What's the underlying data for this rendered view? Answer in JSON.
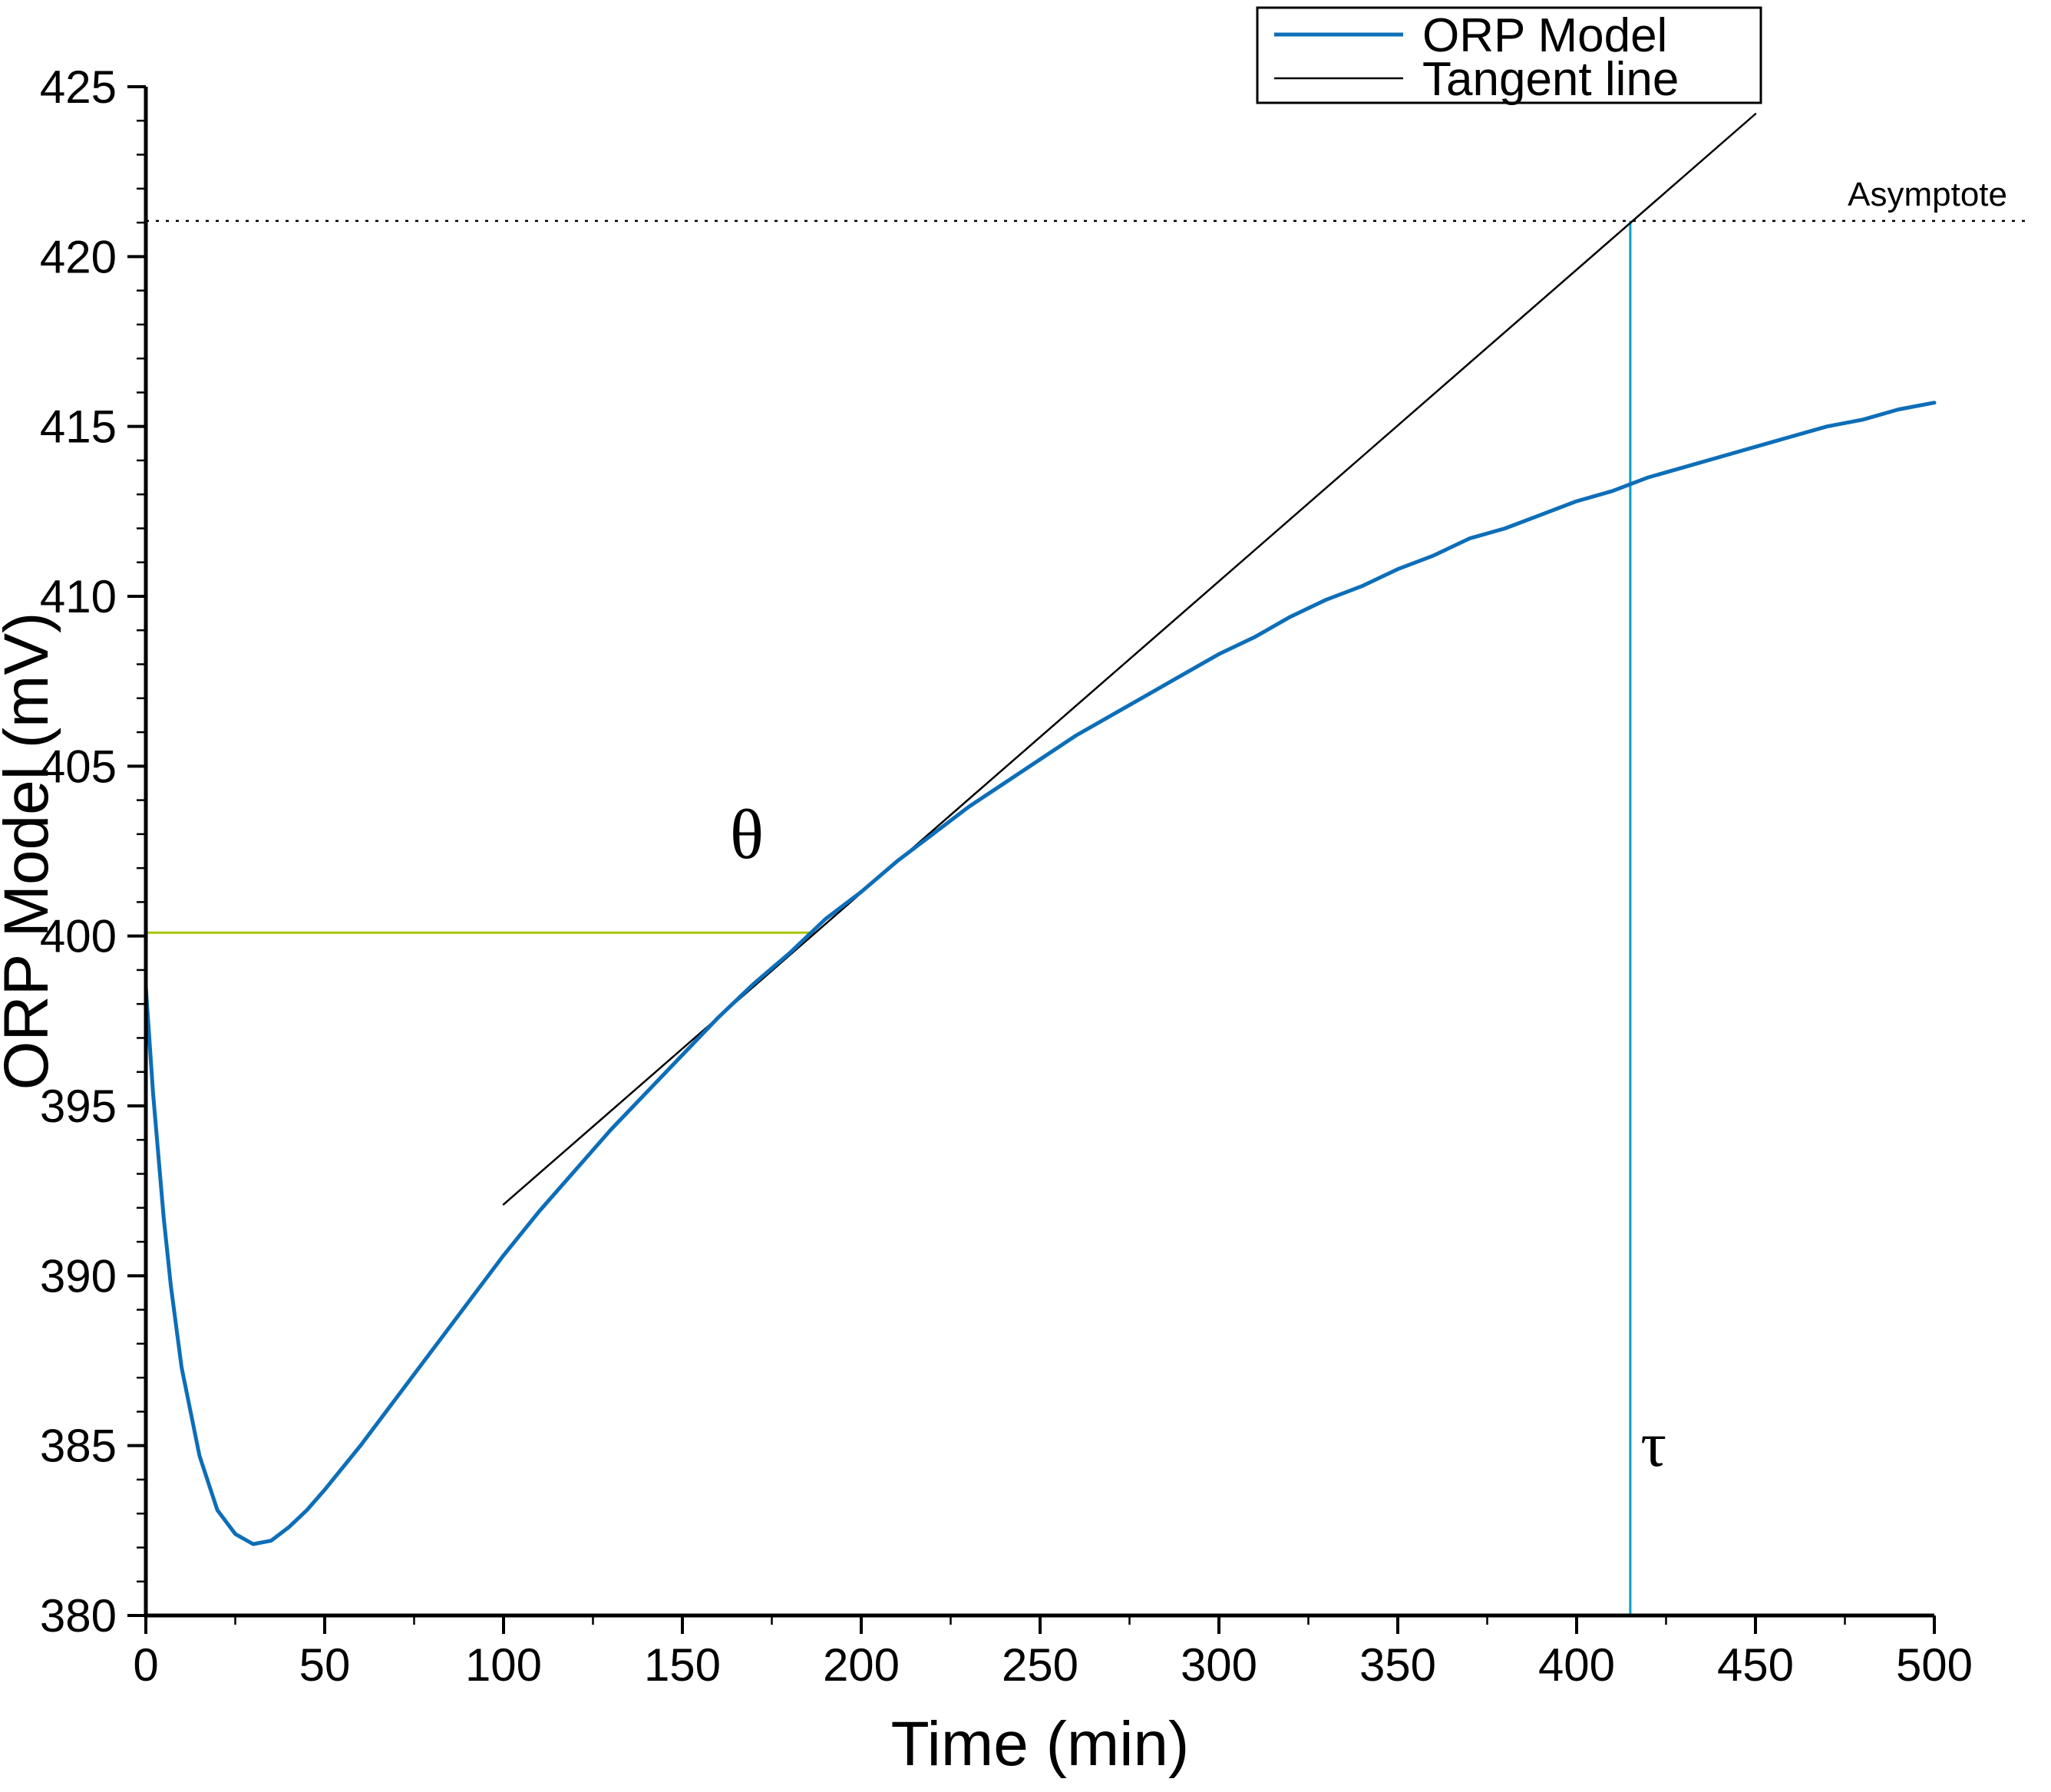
{
  "figure": {
    "background": "#ffffff"
  },
  "chart_data": {
    "type": "line",
    "title": "",
    "xlabel": "Time (min)",
    "ylabel": "ORP Model (mV)",
    "xlim": [
      0,
      500
    ],
    "ylim": [
      380,
      425
    ],
    "x_major_step": 50,
    "x_minor_step": 25,
    "y_major_step": 5,
    "y_minor_step": 1,
    "grid": false,
    "legend": {
      "position": "top-center-right",
      "entries": [
        {
          "label": "ORP Model",
          "color": "#0d6eb8",
          "width": 5
        },
        {
          "label": "Tangent line",
          "color": "#000000",
          "width": 2.5
        }
      ]
    },
    "series": [
      {
        "name": "Tangent line",
        "color": "#000000",
        "width": 2.5,
        "x": [
          100,
          450
        ],
        "y": [
          392.1,
          424.2
        ]
      },
      {
        "name": "ORP Model",
        "color": "#0d6eb8",
        "width": 5,
        "x": [
          0,
          2,
          5,
          7,
          10,
          15,
          20,
          25,
          30,
          35,
          40,
          45,
          50,
          60,
          70,
          80,
          90,
          100,
          110,
          120,
          130,
          140,
          150,
          160,
          170,
          180,
          190,
          200,
          210,
          220,
          230,
          240,
          250,
          260,
          270,
          280,
          290,
          300,
          310,
          320,
          330,
          340,
          350,
          360,
          370,
          380,
          390,
          400,
          410,
          420,
          430,
          440,
          450,
          460,
          470,
          480,
          490,
          500
        ],
        "y": [
          398.5,
          395.4,
          391.7,
          389.7,
          387.3,
          384.7,
          383.1,
          382.4,
          382.1,
          382.2,
          382.6,
          383.1,
          383.7,
          385.0,
          386.4,
          387.8,
          389.2,
          390.6,
          391.9,
          393.1,
          394.3,
          395.4,
          396.5,
          397.6,
          398.6,
          399.5,
          400.5,
          401.3,
          402.2,
          403.0,
          403.8,
          404.5,
          405.2,
          405.9,
          406.5,
          407.1,
          407.7,
          408.3,
          408.8,
          409.4,
          409.9,
          410.3,
          410.8,
          411.2,
          411.7,
          412.0,
          412.4,
          412.8,
          413.1,
          413.5,
          413.8,
          414.1,
          414.4,
          414.7,
          415.0,
          415.2,
          415.5,
          415.7
        ]
      }
    ],
    "annotations": {
      "asymptote": {
        "type": "hline",
        "y": 421.05,
        "label": "Asymptote",
        "color": "#000000",
        "style": "dotted"
      },
      "theta_line": {
        "type": "hline-segment",
        "y": 400.1,
        "x_start": 0,
        "x_end": 187,
        "color": "#a8c400"
      },
      "theta_label": {
        "text": "θ",
        "x": 168,
        "y": 402.3,
        "color": "#a8c400"
      },
      "tau_line": {
        "type": "vline",
        "x": 415,
        "y_start": 380,
        "y_end": 421.05,
        "color": "#00a0c6"
      },
      "tau_label": {
        "text": "τ",
        "x": 421.5,
        "y": 384.4,
        "color": "#00a0c6"
      }
    }
  }
}
